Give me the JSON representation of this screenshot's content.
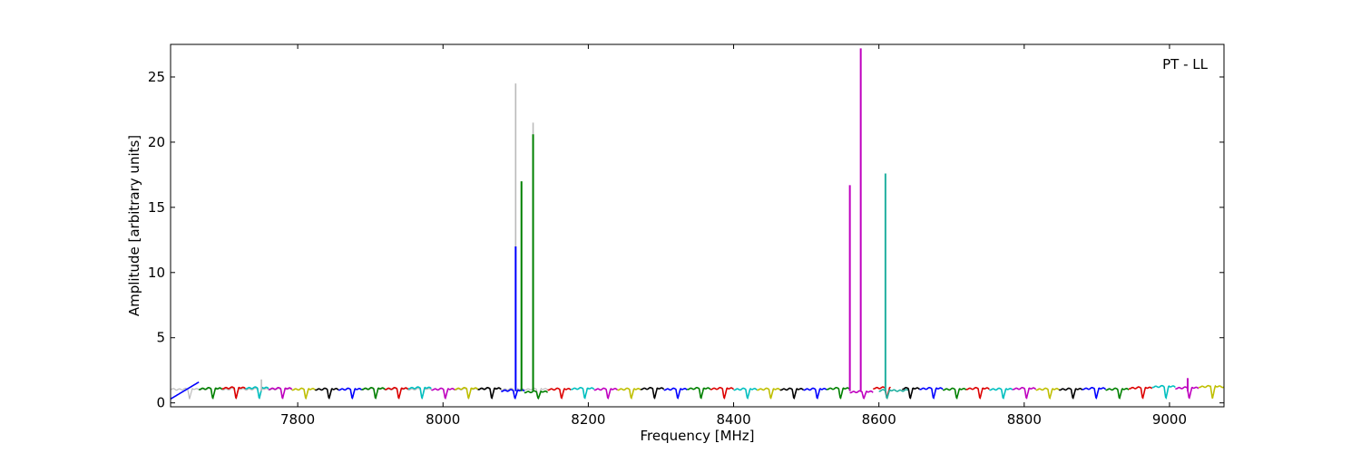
{
  "chart_data": {
    "type": "line",
    "title": "",
    "annotation": "PT - LL",
    "xlabel": "Frequency [MHz]",
    "ylabel": "Amplitude [arbitrary units]",
    "xlim": [
      7625,
      9075
    ],
    "ylim": [
      -0.3,
      27.5
    ],
    "xticks": [
      7800,
      8000,
      8200,
      8400,
      8600,
      8800,
      9000
    ],
    "yticks": [
      0,
      5,
      10,
      15,
      20,
      25
    ],
    "grid": false,
    "legend": "none",
    "baseline": {
      "peak": 1.15,
      "dip": 0.3,
      "channel_width_mhz": 32
    },
    "colors": {
      "blue": "#0000ff",
      "green": "#008000",
      "red": "#dd0000",
      "cyan": "#00bfbf",
      "magenta": "#bf00bf",
      "olive": "#bfbf00",
      "black": "#000000",
      "gray": "#bbbbbb",
      "teal": "#22b0a0"
    },
    "series": [
      {
        "color": "gray",
        "x_range": [
          7625,
          8145
        ],
        "level": 1.1
      },
      {
        "color": "blue",
        "x_range": [
          7625,
          7664
        ],
        "level": 1.2
      },
      {
        "color": "green",
        "x_range": [
          7664,
          7696
        ],
        "level": 1.15
      },
      {
        "color": "red",
        "x_range": [
          7696,
          7728
        ],
        "level": 1.2
      },
      {
        "color": "cyan",
        "x_range": [
          7728,
          7760
        ],
        "level": 1.2
      },
      {
        "color": "magenta",
        "x_range": [
          7760,
          7792
        ],
        "level": 1.15
      },
      {
        "color": "olive",
        "x_range": [
          7792,
          7824
        ],
        "level": 1.1
      },
      {
        "color": "black",
        "x_range": [
          7824,
          7856
        ],
        "level": 1.1
      },
      {
        "color": "blue",
        "x_range": [
          7856,
          7888
        ],
        "level": 1.1
      },
      {
        "color": "green",
        "x_range": [
          7888,
          7920
        ],
        "level": 1.15
      },
      {
        "color": "red",
        "x_range": [
          7920,
          7952
        ],
        "level": 1.15
      },
      {
        "color": "cyan",
        "x_range": [
          7952,
          7984
        ],
        "level": 1.2
      },
      {
        "color": "magenta",
        "x_range": [
          7984,
          8016
        ],
        "level": 1.1
      },
      {
        "color": "olive",
        "x_range": [
          8016,
          8048
        ],
        "level": 1.15
      },
      {
        "color": "black",
        "x_range": [
          8048,
          8080
        ],
        "level": 1.15
      },
      {
        "color": "blue",
        "x_range": [
          8080,
          8112
        ],
        "level": 1.0
      },
      {
        "color": "green",
        "x_range": [
          8112,
          8144
        ],
        "level": 0.9
      },
      {
        "color": "red",
        "x_range": [
          8144,
          8176
        ],
        "level": 1.1
      },
      {
        "color": "cyan",
        "x_range": [
          8176,
          8208
        ],
        "level": 1.15
      },
      {
        "color": "magenta",
        "x_range": [
          8208,
          8240
        ],
        "level": 1.1
      },
      {
        "color": "olive",
        "x_range": [
          8240,
          8272
        ],
        "level": 1.1
      },
      {
        "color": "black",
        "x_range": [
          8272,
          8304
        ],
        "level": 1.15
      },
      {
        "color": "blue",
        "x_range": [
          8304,
          8336
        ],
        "level": 1.1
      },
      {
        "color": "green",
        "x_range": [
          8336,
          8368
        ],
        "level": 1.15
      },
      {
        "color": "red",
        "x_range": [
          8368,
          8400
        ],
        "level": 1.15
      },
      {
        "color": "cyan",
        "x_range": [
          8400,
          8432
        ],
        "level": 1.1
      },
      {
        "color": "olive",
        "x_range": [
          8432,
          8464
        ],
        "level": 1.1
      },
      {
        "color": "black",
        "x_range": [
          8464,
          8496
        ],
        "level": 1.1
      },
      {
        "color": "blue",
        "x_range": [
          8496,
          8528
        ],
        "level": 1.1
      },
      {
        "color": "green",
        "x_range": [
          8528,
          8560
        ],
        "level": 1.15
      },
      {
        "color": "magenta",
        "x_range": [
          8560,
          8592
        ],
        "level": 0.9
      },
      {
        "color": "red",
        "x_range": [
          8592,
          8616
        ],
        "level": 1.2
      },
      {
        "color": "teal",
        "x_range": [
          8600,
          8640
        ],
        "level": 1.0
      },
      {
        "color": "black",
        "x_range": [
          8632,
          8656
        ],
        "level": 1.15
      },
      {
        "color": "blue",
        "x_range": [
          8656,
          8688
        ],
        "level": 1.15
      },
      {
        "color": "green",
        "x_range": [
          8688,
          8720
        ],
        "level": 1.1
      },
      {
        "color": "red",
        "x_range": [
          8720,
          8752
        ],
        "level": 1.15
      },
      {
        "color": "cyan",
        "x_range": [
          8752,
          8784
        ],
        "level": 1.1
      },
      {
        "color": "magenta",
        "x_range": [
          8784,
          8816
        ],
        "level": 1.15
      },
      {
        "color": "olive",
        "x_range": [
          8816,
          8848
        ],
        "level": 1.1
      },
      {
        "color": "black",
        "x_range": [
          8848,
          8880
        ],
        "level": 1.1
      },
      {
        "color": "blue",
        "x_range": [
          8880,
          8912
        ],
        "level": 1.15
      },
      {
        "color": "green",
        "x_range": [
          8912,
          8944
        ],
        "level": 1.1
      },
      {
        "color": "red",
        "x_range": [
          8944,
          8976
        ],
        "level": 1.2
      },
      {
        "color": "cyan",
        "x_range": [
          8976,
          9008
        ],
        "level": 1.3
      },
      {
        "color": "magenta",
        "x_range": [
          9008,
          9040
        ],
        "level": 1.2
      },
      {
        "color": "olive",
        "x_range": [
          9040,
          9075
        ],
        "level": 1.3
      }
    ],
    "spikes": [
      {
        "color": "gray",
        "x": 8100,
        "y": 24.5
      },
      {
        "color": "gray",
        "x": 8124,
        "y": 21.5
      },
      {
        "color": "blue",
        "x": 8100,
        "y": 12.0
      },
      {
        "color": "green",
        "x": 8108,
        "y": 17.0
      },
      {
        "color": "green",
        "x": 8124,
        "y": 20.6
      },
      {
        "color": "magenta",
        "x": 8560,
        "y": 16.7
      },
      {
        "color": "magenta",
        "x": 8575,
        "y": 27.2
      },
      {
        "color": "teal",
        "x": 8609,
        "y": 17.6
      },
      {
        "color": "magenta",
        "x": 9025,
        "y": 1.9
      },
      {
        "color": "gray",
        "x": 7750,
        "y": 1.8
      }
    ]
  }
}
